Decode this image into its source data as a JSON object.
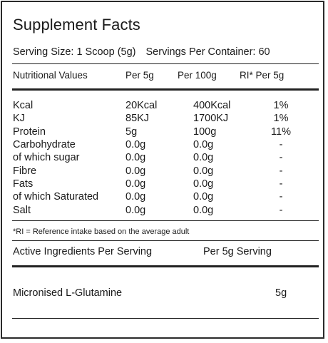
{
  "title": "Supplement Facts",
  "serving": {
    "size": "Serving Size: 1 Scoop (5g)",
    "per_container": "Servings Per Container: 60"
  },
  "headers": {
    "nutritional_values": "Nutritional Values",
    "per_5g": "Per 5g",
    "per_100g": "Per 100g",
    "ri": "RI* Per 5g"
  },
  "nutrients": [
    {
      "name": "Kcal",
      "per_5g": "20Kcal",
      "per_100g": "400Kcal",
      "ri": "1%"
    },
    {
      "name": "KJ",
      "per_5g": "85KJ",
      "per_100g": "1700KJ",
      "ri": "1%"
    },
    {
      "name": "Protein",
      "per_5g": "5g",
      "per_100g": "100g",
      "ri": "11%"
    },
    {
      "name": "Carbohydrate",
      "per_5g": "0.0g",
      "per_100g": "0.0g",
      "ri": "-"
    },
    {
      "name": "of which sugar",
      "per_5g": "0.0g",
      "per_100g": "0.0g",
      "ri": "-"
    },
    {
      "name": "Fibre",
      "per_5g": "0.0g",
      "per_100g": "0.0g",
      "ri": "-"
    },
    {
      "name": "Fats",
      "per_5g": "0.0g",
      "per_100g": "0.0g",
      "ri": "-"
    },
    {
      "name": "of which Saturated",
      "per_5g": "0.0g",
      "per_100g": "0.0g",
      "ri": "-"
    },
    {
      "name": "Salt",
      "per_5g": "0.0g",
      "per_100g": "0.0g",
      "ri": "-"
    }
  ],
  "footnote": "*RI = Reference intake based on the average adult",
  "active": {
    "header_label": "Active Ingredients Per Serving",
    "header_amount": "Per 5g Serving",
    "ingredient": "Micronised L-Glutamine",
    "amount": "5g"
  }
}
